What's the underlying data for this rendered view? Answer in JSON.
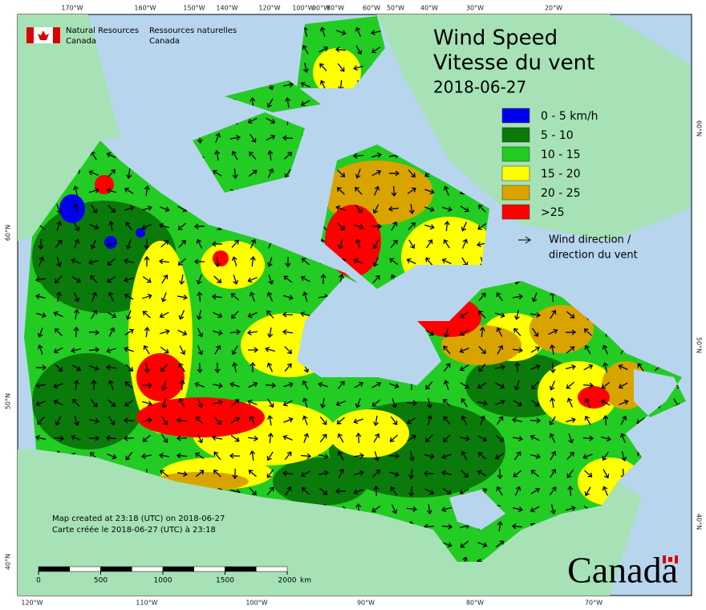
{
  "header": {
    "department_en": [
      "Natural Resources",
      "Canada"
    ],
    "department_fr": [
      "Ressources naturelles",
      "Canada"
    ]
  },
  "legend": {
    "title": [
      "Wind Speed",
      "Vitesse du vent"
    ],
    "date": "2018-06-27",
    "items": [
      {
        "label": "0 - 5 km/h",
        "color": "#0000ee"
      },
      {
        "label": "5 - 10",
        "color": "#0a7a0a"
      },
      {
        "label": "10 - 15",
        "color": "#22cc22"
      },
      {
        "label": "15 - 20",
        "color": "#ffff00"
      },
      {
        "label": "20 - 25",
        "color": "#d9a400"
      },
      {
        "label": ">25",
        "color": "#ff0000"
      }
    ],
    "direction": [
      "Wind direction /",
      "direction du vent"
    ]
  },
  "graticule": {
    "top": [
      "170°W",
      "160°W",
      "150°W",
      "140°W",
      "120°W",
      "100°W",
      "90°W",
      "80°W",
      "60°W",
      "50°W",
      "40°W",
      "30°W",
      "20°W"
    ],
    "left": [
      "60°N",
      "50°N",
      "40°N"
    ],
    "right": [
      "60°N",
      "50°N",
      "40°N"
    ],
    "bottom": [
      "120°W",
      "110°W",
      "100°W",
      "90°W",
      "80°W",
      "70°W"
    ]
  },
  "footer": [
    "Map created at 23:18 (UTC) on 2018-06-27",
    "Carte créée le 2018-06-27 (UTC) à 23:18"
  ],
  "scale_bar": {
    "ticks": [
      0,
      500,
      1000,
      1500,
      2000
    ],
    "unit": "km"
  },
  "wordmark": "Canada"
}
